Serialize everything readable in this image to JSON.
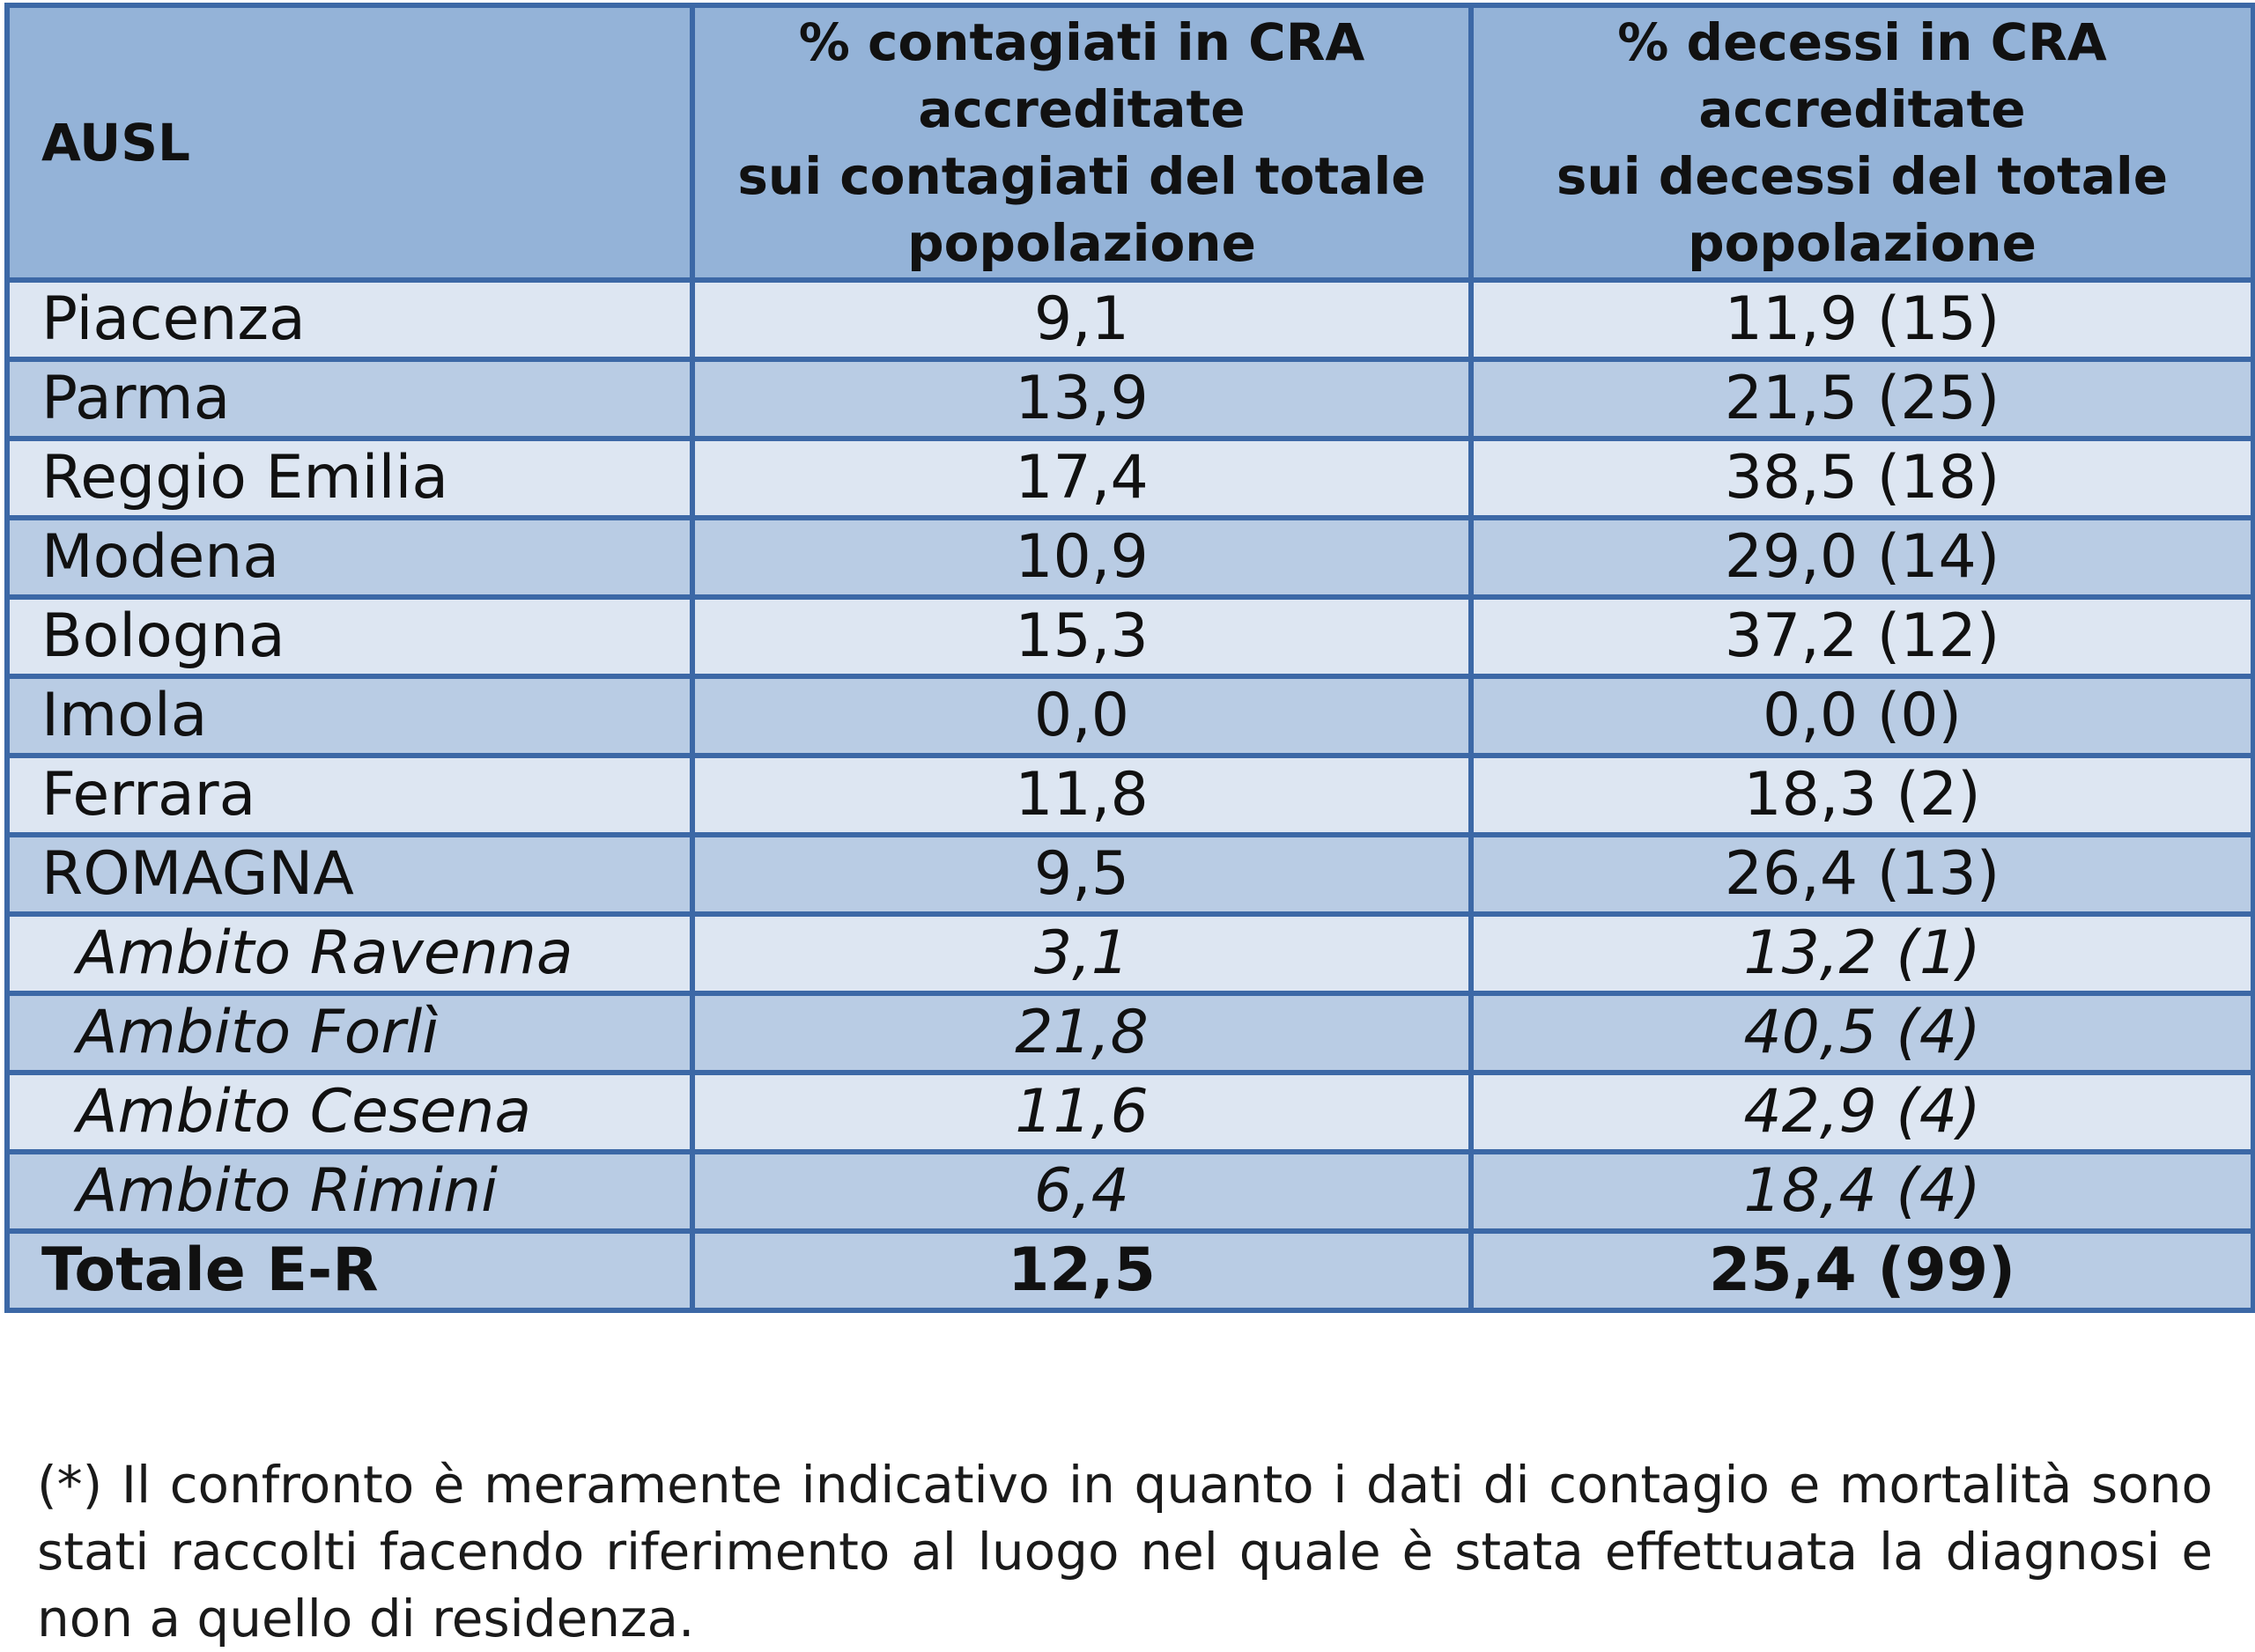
{
  "table": {
    "headers": [
      [
        "AUSL"
      ],
      [
        "% contagiati in CRA",
        "accreditate",
        "sui contagiati del totale",
        "popolazione"
      ],
      [
        "% decessi in CRA",
        "accreditate",
        "sui decessi del totale",
        "popolazione"
      ]
    ],
    "rows": [
      {
        "name": "Piacenza",
        "contagiati": "9,1",
        "decessi": "11,9  (15)"
      },
      {
        "name": "Parma",
        "contagiati": "13,9",
        "decessi": "21,5  (25)"
      },
      {
        "name": "Reggio Emilia",
        "contagiati": "17,4",
        "decessi": "38,5 (18)"
      },
      {
        "name": "Modena",
        "contagiati": "10,9",
        "decessi": "29,0 (14)"
      },
      {
        "name": "Bologna",
        "contagiati": "15,3",
        "decessi": "37,2 (12)"
      },
      {
        "name": "Imola",
        "contagiati": "0,0",
        "decessi": "0,0  (0)"
      },
      {
        "name": "Ferrara",
        "contagiati": "11,8",
        "decessi": "18,3 (2)"
      },
      {
        "name": "ROMAGNA",
        "contagiati": "9,5",
        "decessi": "26,4 (13)"
      },
      {
        "name": "Ambito Ravenna",
        "contagiati": "3,1",
        "decessi": "13,2 (1)"
      },
      {
        "name": "Ambito  Forlì",
        "contagiati": "21,8",
        "decessi": "40,5 (4)"
      },
      {
        "name": "Ambito  Cesena",
        "contagiati": "11,6",
        "decessi": "42,9 (4)"
      },
      {
        "name": "Ambito  Rimini",
        "contagiati": "6,4",
        "decessi": "18,4 (4)"
      }
    ],
    "total": {
      "name": "Totale E-R",
      "contagiati": "12,5",
      "decessi": "25,4 (99)"
    }
  },
  "note": "(*) Il confronto è meramente indicativo in quanto i dati di contagio e mortalità sono stati raccolti facendo riferimento al luogo nel quale è stata effettuata la diagnosi e non a quello di residenza.",
  "colors": {
    "header_bg": "#94b3d8",
    "row_light": "#dde6f2",
    "row_mid": "#b9cce4",
    "border": "#3c68a6"
  }
}
